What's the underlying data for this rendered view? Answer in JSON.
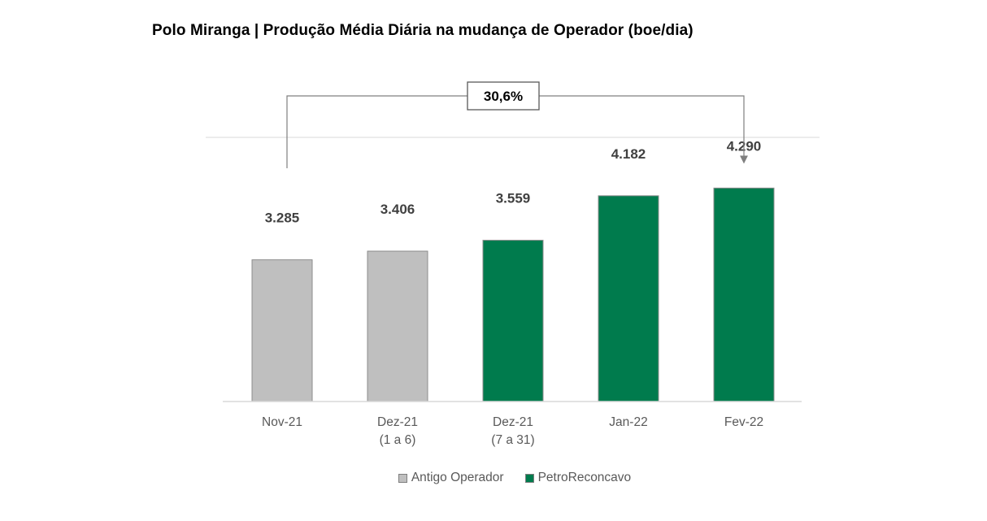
{
  "title": "Polo Miranga | Produção Média Diária na mudança de Operador (boe/dia)",
  "chart_data": {
    "type": "bar",
    "categories": [
      [
        "Nov-21"
      ],
      [
        "Dez-21",
        "(1 a 6)"
      ],
      [
        "Dez-21",
        "(7 a 31)"
      ],
      [
        "Jan-22"
      ],
      [
        "Fev-22"
      ]
    ],
    "values": [
      3285,
      3406,
      3559,
      4182,
      4290
    ],
    "value_labels": [
      "3.285",
      "3.406",
      "3.559",
      "4.182",
      "4.290"
    ],
    "series_by_bar": [
      "Antigo Operador",
      "Antigo Operador",
      "PetroReconcavo",
      "PetroReconcavo",
      "PetroReconcavo"
    ],
    "legend": [
      {
        "name": "Antigo Operador",
        "color": "#bfbfbf"
      },
      {
        "name": "PetroReconcavo",
        "color": "#007b4d"
      }
    ],
    "legend_position": "bottom",
    "annotation": {
      "label": "30,6%",
      "from_category": 0,
      "to_category": 4
    },
    "ylim": [
      1300,
      5000
    ],
    "grid": false
  }
}
